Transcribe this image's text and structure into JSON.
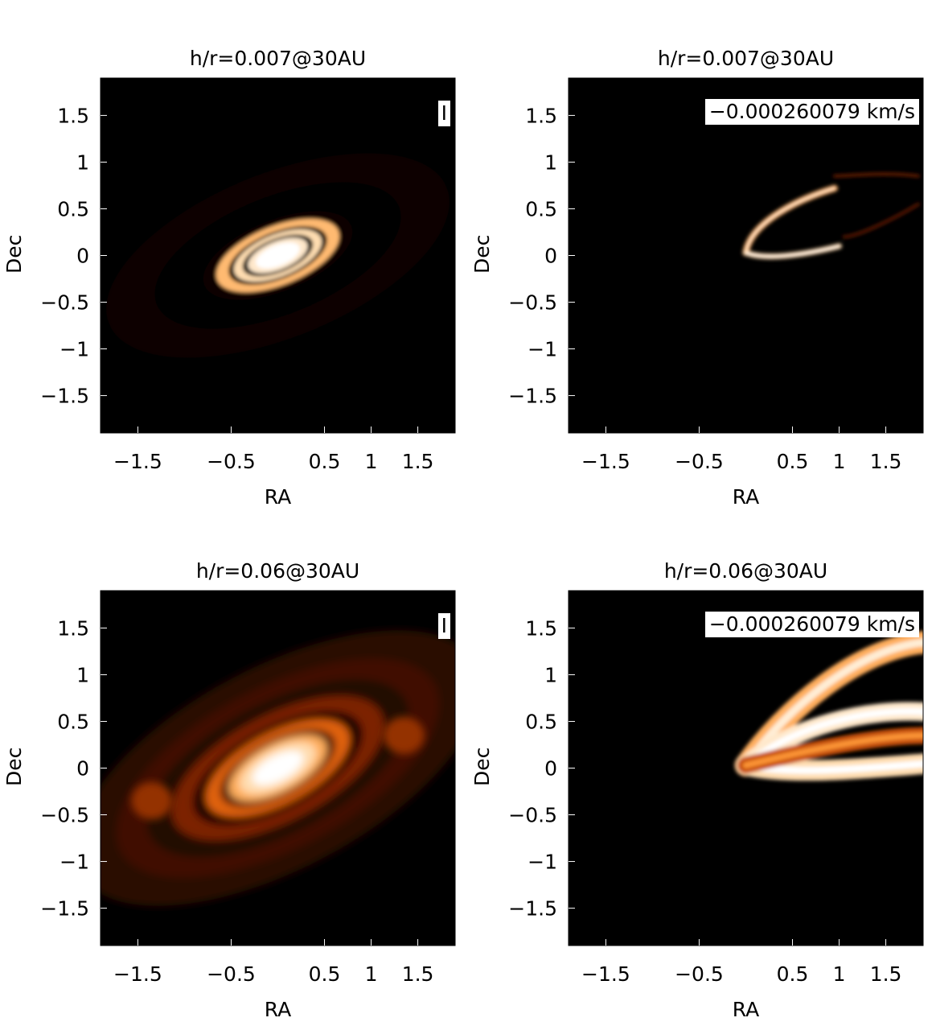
{
  "colors": {
    "background": "#000000",
    "colormap": [
      "#000000",
      "#3a0e00",
      "#8c2a00",
      "#e0620c",
      "#ff9a3a",
      "#ffd9a8",
      "#ffffff"
    ]
  },
  "chart_data": [
    {
      "type": "heatmap",
      "title": "h/r=0.007@30AU",
      "xlabel": "RA",
      "ylabel": "Dec",
      "annotation": "I",
      "xlim": [
        -1.9,
        1.9
      ],
      "ylim": [
        -1.9,
        1.9
      ],
      "xticks": [
        -1.5,
        -0.5,
        0.5,
        1,
        1.5
      ],
      "yticks": [
        1.5,
        1,
        0.5,
        0,
        -0.5,
        -1,
        -1.5
      ],
      "xtick_labels": [
        "−1.5",
        "−0.5",
        "0.5",
        "1",
        "1.5"
      ],
      "ytick_labels": [
        "1.5",
        "1",
        "0.5",
        "0",
        "−0.5",
        "−1",
        "−1.5"
      ],
      "colormap": "black-orange-white",
      "kind": "continuum-rings",
      "inclination_axis_ratio": 0.45,
      "position_angle_deg": 22,
      "rings": [
        {
          "a": 1.95,
          "level": 0.05
        },
        {
          "a": 1.4,
          "level": 0.0
        },
        {
          "a": 0.85,
          "level": 0.02
        },
        {
          "a": 0.7,
          "level": 0.75
        },
        {
          "a": 0.56,
          "level": 0.0
        },
        {
          "a": 0.5,
          "level": 0.85
        },
        {
          "a": 0.4,
          "level": 0.0
        },
        {
          "a": 0.34,
          "level": 0.9
        },
        {
          "a": 0.25,
          "level": 1.0
        }
      ]
    },
    {
      "type": "heatmap",
      "title": "h/r=0.007@30AU",
      "xlabel": "RA",
      "ylabel": "Dec",
      "annotation": "−0.000260079 km/s",
      "xlim": [
        -1.9,
        1.9
      ],
      "ylim": [
        -1.9,
        1.9
      ],
      "xticks": [
        -1.5,
        -0.5,
        0.5,
        1,
        1.5
      ],
      "yticks": [
        1.5,
        1,
        0.5,
        0,
        -0.5,
        -1,
        -1.5
      ],
      "xtick_labels": [
        "−1.5",
        "−0.5",
        "0.5",
        "1",
        "1.5"
      ],
      "ytick_labels": [
        "1.5",
        "1",
        "0.5",
        "0",
        "−0.5",
        "−1",
        "−1.5"
      ],
      "colormap": "black-orange-white",
      "kind": "channel-map-thin",
      "inclination_axis_ratio": 0.45,
      "position_angle_deg": 22
    },
    {
      "type": "heatmap",
      "title": "h/r=0.06@30AU",
      "xlabel": "RA",
      "ylabel": "Dec",
      "annotation": "I",
      "xlim": [
        -1.9,
        1.9
      ],
      "ylim": [
        -1.9,
        1.9
      ],
      "xticks": [
        -1.5,
        -0.5,
        0.5,
        1,
        1.5
      ],
      "yticks": [
        1.5,
        1,
        0.5,
        0,
        -0.5,
        -1,
        -1.5
      ],
      "xtick_labels": [
        "−1.5",
        "−0.5",
        "0.5",
        "1",
        "1.5"
      ],
      "ytick_labels": [
        "1.5",
        "1",
        "0.5",
        "0",
        "−0.5",
        "−1",
        "−1.5"
      ],
      "colormap": "black-orange-white",
      "kind": "continuum-diffuse",
      "inclination_axis_ratio": 0.45,
      "position_angle_deg": 28,
      "rings": [
        {
          "a": 2.4,
          "level": 0.12
        },
        {
          "a": 1.9,
          "level": 0.18
        },
        {
          "a": 1.55,
          "level": 0.1
        },
        {
          "a": 1.25,
          "level": 0.3
        },
        {
          "a": 1.0,
          "level": 0.06
        },
        {
          "a": 0.85,
          "level": 0.5
        },
        {
          "a": 0.68,
          "level": 0.2
        },
        {
          "a": 0.58,
          "level": 0.72
        },
        {
          "a": 0.45,
          "level": 0.85
        },
        {
          "a": 0.3,
          "level": 1.0
        }
      ]
    },
    {
      "type": "heatmap",
      "title": "h/r=0.06@30AU",
      "xlabel": "RA",
      "ylabel": "Dec",
      "annotation": "−0.000260079 km/s",
      "xlim": [
        -1.9,
        1.9
      ],
      "ylim": [
        -1.9,
        1.9
      ],
      "xticks": [
        -1.5,
        -0.5,
        0.5,
        1,
        1.5
      ],
      "yticks": [
        1.5,
        1,
        0.5,
        0,
        -0.5,
        -1,
        -1.5
      ],
      "xtick_labels": [
        "−1.5",
        "−0.5",
        "0.5",
        "1",
        "1.5"
      ],
      "ytick_labels": [
        "1.5",
        "1",
        "0.5",
        "0",
        "−0.5",
        "−1",
        "−1.5"
      ],
      "colormap": "black-orange-white",
      "kind": "channel-map-thick",
      "inclination_axis_ratio": 0.45,
      "position_angle_deg": 22
    }
  ]
}
